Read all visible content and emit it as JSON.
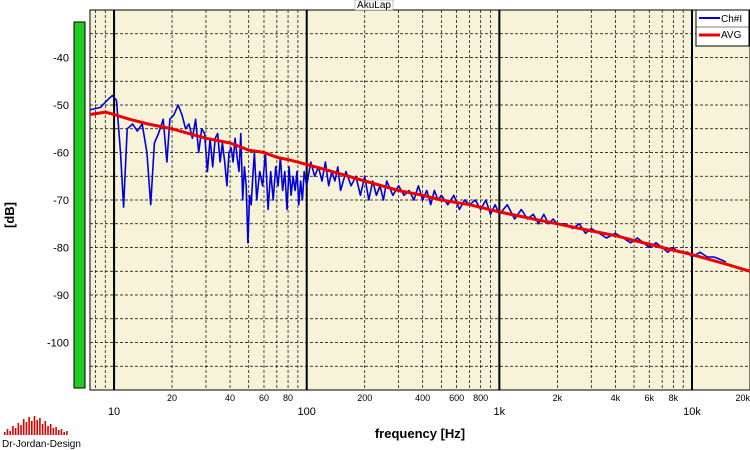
{
  "chart_data": {
    "type": "line",
    "title": "AkuLap",
    "xlabel": "frequency [Hz]",
    "ylabel": "[dB]",
    "x_scale": "log",
    "xlim": [
      7.5,
      20000
    ],
    "ylim": [
      -110,
      -30
    ],
    "major_x_ticks": [
      {
        "value": 10,
        "label": "10"
      },
      {
        "value": 100,
        "label": "100"
      },
      {
        "value": 1000,
        "label": "1k"
      },
      {
        "value": 10000,
        "label": "10k"
      }
    ],
    "minor_x_ticks": [
      {
        "value": 20,
        "label": "20"
      },
      {
        "value": 40,
        "label": "40"
      },
      {
        "value": 60,
        "label": "60"
      },
      {
        "value": 80,
        "label": "80"
      },
      {
        "value": 200,
        "label": "200"
      },
      {
        "value": 400,
        "label": "400"
      },
      {
        "value": 600,
        "label": "600"
      },
      {
        "value": 800,
        "label": "800"
      },
      {
        "value": 2000,
        "label": "2k"
      },
      {
        "value": 4000,
        "label": "4k"
      },
      {
        "value": 6000,
        "label": "6k"
      },
      {
        "value": 8000,
        "label": "8k"
      },
      {
        "value": 20000,
        "label": "20k"
      }
    ],
    "y_ticks": [
      {
        "value": -40,
        "label": "-40"
      },
      {
        "value": -50,
        "label": "-50"
      },
      {
        "value": -60,
        "label": "-60"
      },
      {
        "value": -70,
        "label": "-70"
      },
      {
        "value": -80,
        "label": "-80"
      },
      {
        "value": -90,
        "label": "-90"
      },
      {
        "value": -100,
        "label": "-100"
      }
    ],
    "grid": true,
    "legend_position": "top-right",
    "series": [
      {
        "name": "Ch#I",
        "color": "#0000dd",
        "points": [
          [
            7.5,
            -51
          ],
          [
            8.5,
            -50.5
          ],
          [
            9.2,
            -49
          ],
          [
            9.8,
            -48
          ],
          [
            10.3,
            -49
          ],
          [
            10.8,
            -60
          ],
          [
            11.2,
            -71.5
          ],
          [
            11.7,
            -55
          ],
          [
            12.5,
            -54
          ],
          [
            13.2,
            -55.5
          ],
          [
            14,
            -54
          ],
          [
            14.8,
            -60
          ],
          [
            15.5,
            -71
          ],
          [
            16.2,
            -58
          ],
          [
            17,
            -56
          ],
          [
            18,
            -53
          ],
          [
            18.8,
            -62
          ],
          [
            19.5,
            -53
          ],
          [
            20.5,
            -52
          ],
          [
            21.5,
            -50
          ],
          [
            22.5,
            -52
          ],
          [
            23.5,
            -55
          ],
          [
            24.5,
            -54
          ],
          [
            25.5,
            -57
          ],
          [
            26.5,
            -53
          ],
          [
            27.5,
            -60
          ],
          [
            28.5,
            -55
          ],
          [
            29.5,
            -56
          ],
          [
            30.5,
            -64
          ],
          [
            31.5,
            -57
          ],
          [
            32.5,
            -63
          ],
          [
            33.5,
            -57
          ],
          [
            34.5,
            -56
          ],
          [
            35.5,
            -62
          ],
          [
            36.5,
            -58
          ],
          [
            37.5,
            -62
          ],
          [
            38.5,
            -67
          ],
          [
            39.5,
            -60
          ],
          [
            40.5,
            -59
          ],
          [
            41.5,
            -62
          ],
          [
            42.5,
            -57
          ],
          [
            43.5,
            -61
          ],
          [
            44.5,
            -64
          ],
          [
            45.5,
            -56
          ],
          [
            46.5,
            -70
          ],
          [
            47.5,
            -63
          ],
          [
            48.5,
            -67
          ],
          [
            49.5,
            -79
          ],
          [
            50.5,
            -69
          ],
          [
            51.5,
            -71
          ],
          [
            52.5,
            -65
          ],
          [
            53.5,
            -60
          ],
          [
            55,
            -70
          ],
          [
            57,
            -64
          ],
          [
            59,
            -67
          ],
          [
            61,
            -60
          ],
          [
            63,
            -72
          ],
          [
            65,
            -64
          ],
          [
            67,
            -70
          ],
          [
            69,
            -63
          ],
          [
            71,
            -67
          ],
          [
            73,
            -61
          ],
          [
            75,
            -68
          ],
          [
            77,
            -64
          ],
          [
            79,
            -72
          ],
          [
            81,
            -63
          ],
          [
            83,
            -69
          ],
          [
            85,
            -65
          ],
          [
            87,
            -68
          ],
          [
            89,
            -64
          ],
          [
            91,
            -71
          ],
          [
            93,
            -66
          ],
          [
            95,
            -70
          ],
          [
            97,
            -64
          ],
          [
            100,
            -67
          ],
          [
            105,
            -62
          ],
          [
            110,
            -65
          ],
          [
            115,
            -63
          ],
          [
            120,
            -66
          ],
          [
            125,
            -62
          ],
          [
            130,
            -67
          ],
          [
            135,
            -64
          ],
          [
            140,
            -66
          ],
          [
            145,
            -63
          ],
          [
            150,
            -68
          ],
          [
            160,
            -64
          ],
          [
            170,
            -67
          ],
          [
            180,
            -65
          ],
          [
            190,
            -69
          ],
          [
            200,
            -65
          ],
          [
            210,
            -70
          ],
          [
            220,
            -66
          ],
          [
            230,
            -69
          ],
          [
            240,
            -67
          ],
          [
            250,
            -70
          ],
          [
            260,
            -66
          ],
          [
            280,
            -69
          ],
          [
            300,
            -67
          ],
          [
            320,
            -69
          ],
          [
            340,
            -68
          ],
          [
            360,
            -70
          ],
          [
            380,
            -67
          ],
          [
            400,
            -70
          ],
          [
            420,
            -68
          ],
          [
            440,
            -71
          ],
          [
            460,
            -68
          ],
          [
            480,
            -70
          ],
          [
            500,
            -69
          ],
          [
            540,
            -71
          ],
          [
            580,
            -69
          ],
          [
            620,
            -72
          ],
          [
            660,
            -70
          ],
          [
            700,
            -71
          ],
          [
            750,
            -70
          ],
          [
            800,
            -72
          ],
          [
            850,
            -70
          ],
          [
            900,
            -73
          ],
          [
            950,
            -71
          ],
          [
            1000,
            -73
          ],
          [
            1100,
            -71
          ],
          [
            1200,
            -74
          ],
          [
            1300,
            -72
          ],
          [
            1400,
            -74
          ],
          [
            1500,
            -73
          ],
          [
            1600,
            -75
          ],
          [
            1700,
            -73
          ],
          [
            1800,
            -75
          ],
          [
            1900,
            -74
          ],
          [
            2000,
            -75
          ],
          [
            2200,
            -75
          ],
          [
            2400,
            -76
          ],
          [
            2600,
            -75
          ],
          [
            2800,
            -77
          ],
          [
            3000,
            -76
          ],
          [
            3300,
            -77
          ],
          [
            3600,
            -78
          ],
          [
            4000,
            -77
          ],
          [
            4400,
            -78
          ],
          [
            4800,
            -79
          ],
          [
            5200,
            -78
          ],
          [
            5600,
            -79
          ],
          [
            6000,
            -80
          ],
          [
            6500,
            -79
          ],
          [
            7000,
            -80
          ],
          [
            7500,
            -81
          ],
          [
            8000,
            -80
          ],
          [
            8500,
            -81
          ],
          [
            9000,
            -81
          ],
          [
            9500,
            -81
          ],
          [
            10000,
            -82
          ],
          [
            11000,
            -81
          ],
          [
            12000,
            -82
          ],
          [
            13000,
            -82
          ],
          [
            14000,
            -82.5
          ],
          [
            15000,
            -83
          ]
        ]
      },
      {
        "name": "AVG",
        "color": "#ee0000",
        "points": [
          [
            7.5,
            -52
          ],
          [
            9,
            -51.5
          ],
          [
            10,
            -52
          ],
          [
            12,
            -53
          ],
          [
            15,
            -54
          ],
          [
            20,
            -55
          ],
          [
            30,
            -57
          ],
          [
            40,
            -58
          ],
          [
            50,
            -59.5
          ],
          [
            60,
            -60
          ],
          [
            70,
            -61
          ],
          [
            80,
            -61.5
          ],
          [
            100,
            -62.5
          ],
          [
            150,
            -64.5
          ],
          [
            200,
            -66
          ],
          [
            300,
            -68
          ],
          [
            400,
            -69
          ],
          [
            500,
            -70
          ],
          [
            700,
            -71
          ],
          [
            1000,
            -72.5
          ],
          [
            1500,
            -74
          ],
          [
            2000,
            -75
          ],
          [
            3000,
            -76.5
          ],
          [
            4000,
            -77.5
          ],
          [
            5000,
            -78.5
          ],
          [
            7000,
            -80
          ],
          [
            10000,
            -81.5
          ],
          [
            15000,
            -83.5
          ],
          [
            20000,
            -85
          ]
        ]
      }
    ]
  },
  "logo": {
    "text": "Dr-Jordan-Design",
    "color": "#dd0000"
  },
  "level_bar": {
    "color": "#22cc22",
    "level": 1.0
  }
}
